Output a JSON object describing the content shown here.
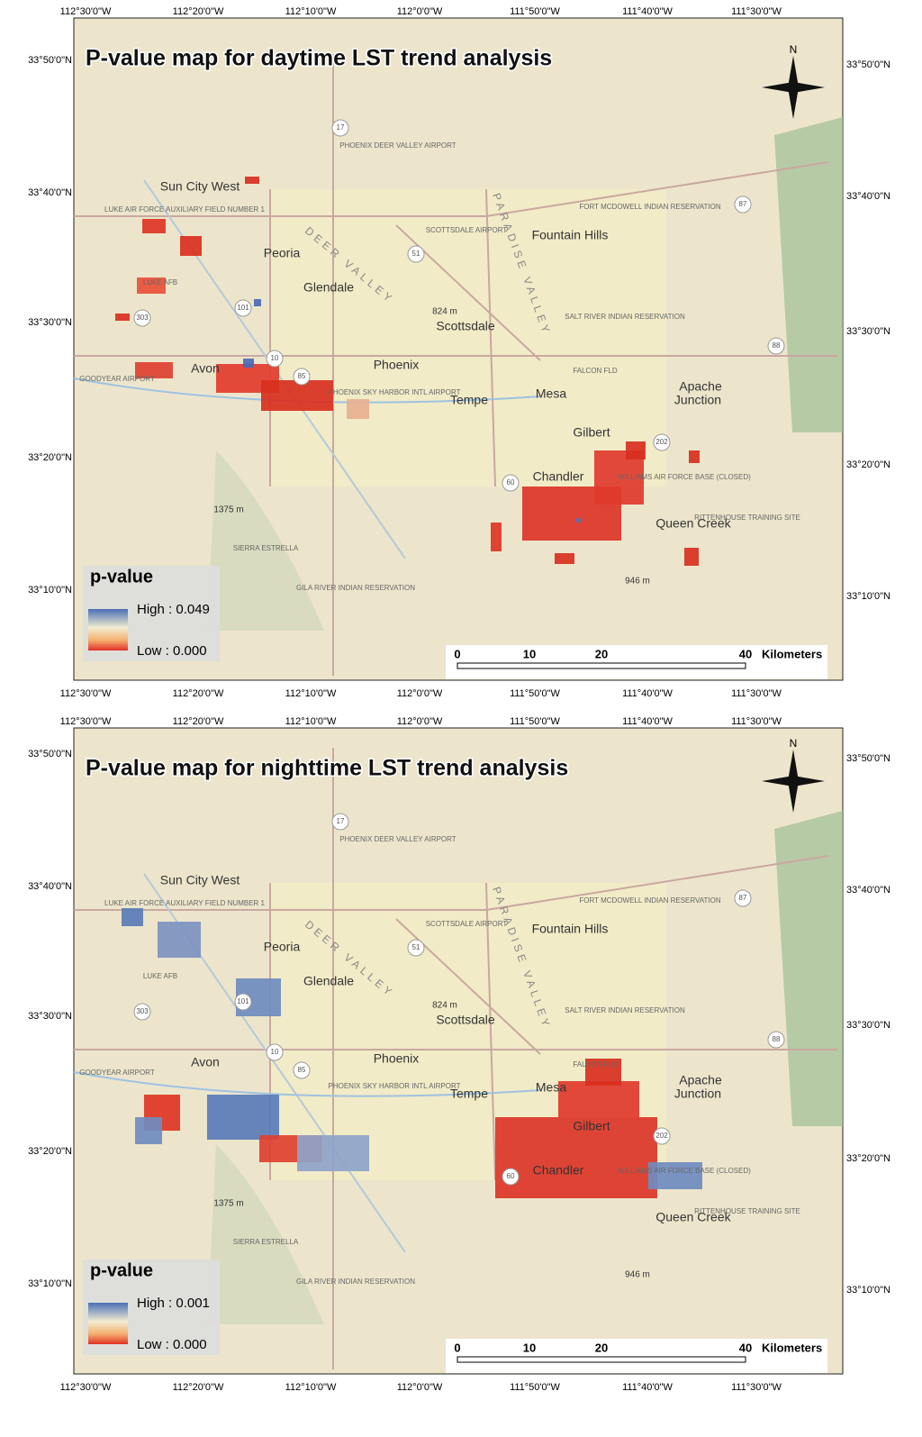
{
  "lon_labels": [
    "112°30'0\"W",
    "112°20'0\"W",
    "112°10'0\"W",
    "112°0'0\"W",
    "111°50'0\"W",
    "111°40'0\"W",
    "111°30'0\"W"
  ],
  "lat_labels": [
    "33°50'0\"N",
    "33°40'0\"N",
    "33°30'0\"N",
    "33°20'0\"N",
    "33°10'0\"N"
  ],
  "places": [
    "Sun City West",
    "Peoria",
    "Glendale",
    "Phoenix",
    "Scottsdale",
    "Tempe",
    "Mesa",
    "Gilbert",
    "Chandler",
    "Fountain Hills",
    "Apache",
    "Junction",
    "Avon",
    "Queen Creek",
    "824 m",
    "1375 m",
    "946 m"
  ],
  "small_labels": [
    "PHOENIX DEER VALLEY AIRPORT",
    "SCOTTSDALE AIRPORT",
    "FORT MCDOWELL INDIAN RESERVATION",
    "SALT RIVER INDIAN RESERVATION",
    "GILA RIVER INDIAN RESERVATION",
    "SIERRA ESTRELLA",
    "LUKE AFB",
    "LUKE AIR FORCE AUXILIARY FIELD NUMBER 1",
    "PHOENIX SKY HARBOR INTL AIRPORT",
    "FALCON FLD",
    "WILLIAMS AIR FORCE BASE (CLOSED)",
    "RITTENHOUSE TRAINING SITE",
    "GOODYEAR AIRPORT"
  ],
  "region_labels": [
    "DEER VALLEY",
    "PARADISE VALLEY"
  ],
  "highways": [
    "17",
    "51",
    "101",
    "10",
    "60",
    "202",
    "87",
    "88",
    "303",
    "85"
  ],
  "north": "N",
  "scale_bar": {
    "ticks": [
      "0",
      "10",
      "20",
      "40"
    ],
    "unit": "Kilometers"
  },
  "panels": [
    {
      "title": "P-value map for daytime LST trend analysis",
      "legend_title": "p-value",
      "legend_high": "High : 0.049",
      "legend_low": "Low : 0.000"
    },
    {
      "title": "P-value map for nighttime LST trend analysis",
      "legend_title": "p-value",
      "legend_high": "High : 0.001",
      "legend_low": "Low : 0.000"
    }
  ]
}
